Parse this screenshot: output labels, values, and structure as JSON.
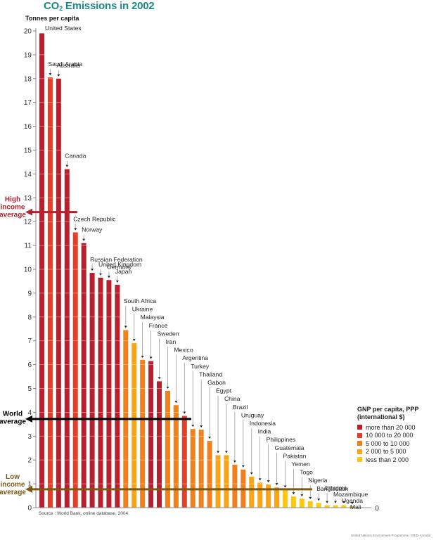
{
  "chart_data": {
    "type": "bar",
    "title": "CO2 Emissions in 2002",
    "title_parts": {
      "prefix": "CO",
      "subscript": "2",
      "suffix": " Emissions in 2002"
    },
    "ylabel": "Tonnes per capita",
    "xlabel": "",
    "ylim": [
      0,
      20
    ],
    "yticks": [
      0,
      1,
      2,
      3,
      4,
      5,
      6,
      7,
      8,
      9,
      10,
      11,
      12,
      13,
      14,
      15,
      16,
      17,
      18,
      19,
      20
    ],
    "grid": true,
    "zero_label_right": "0",
    "categories": [
      "United States",
      "Saudi Arabia",
      "Australia",
      "Canada",
      "Czech Republic",
      "Norway",
      "Russian Federation",
      "United Kingdom",
      "Germany",
      "Japan",
      "South Africa",
      "Ukraine",
      "Malaysia",
      "France",
      "Sweden",
      "Iran",
      "Mexico",
      "Argentina",
      "Turkey",
      "Thailand",
      "Gabon",
      "Egypt",
      "China",
      "Brazil",
      "Uruguay",
      "Indonesia",
      "India",
      "Philippines",
      "Guatemala",
      "Pakistan",
      "Yemen",
      "Togo",
      "Nigeria",
      "Bangladesh",
      "Ethiopia",
      "Mozambique",
      "Uganda",
      "Mali"
    ],
    "values": [
      19.9,
      18.05,
      18.0,
      14.2,
      11.55,
      11.1,
      9.85,
      9.65,
      9.55,
      9.35,
      7.45,
      6.9,
      6.2,
      6.15,
      5.3,
      4.9,
      4.3,
      3.85,
      3.3,
      3.27,
      2.8,
      2.2,
      2.2,
      1.8,
      1.6,
      1.3,
      1.05,
      0.97,
      0.85,
      0.75,
      0.47,
      0.38,
      0.27,
      0.2,
      0.1,
      0.1,
      0.1,
      0.06
    ],
    "income_group": [
      0,
      1,
      0,
      0,
      1,
      0,
      0,
      0,
      0,
      0,
      2,
      3,
      2,
      0,
      0,
      2,
      2,
      1,
      2,
      2,
      2,
      3,
      3,
      2,
      2,
      3,
      3,
      3,
      3,
      4,
      4,
      4,
      4,
      4,
      4,
      4,
      4,
      4
    ],
    "legend": {
      "title_line1": "GNP per capita, PPP",
      "title_line2": "(international $)",
      "placement": "bottom-right",
      "entries": [
        {
          "label": "more than 20 000",
          "color": "#b5212e"
        },
        {
          "label": "10 000 to 20 000",
          "color": "#e2402a"
        },
        {
          "label": "5 000 to 10 000",
          "color": "#f0801e"
        },
        {
          "label": "2 000 to 5 000",
          "color": "#f8a41b"
        },
        {
          "label": "less than 2 000",
          "color": "#fdc80f"
        }
      ]
    },
    "reference_lines": [
      {
        "name": "high-income-average",
        "label_lines": [
          "High",
          "income",
          "average"
        ],
        "value": 12.4,
        "color": "#b5212e"
      },
      {
        "name": "world-average",
        "label_lines": [
          "World",
          "average"
        ],
        "value": 3.72,
        "color": "#000000"
      },
      {
        "name": "low-income-average",
        "label_lines": [
          "Low",
          "income",
          "average"
        ],
        "value": 0.77,
        "color": "#7d5a14"
      }
    ],
    "source": "Source : World Bank, online database, 2004.",
    "credit": "United Nations Environment Programme / GRID-Arendal"
  }
}
